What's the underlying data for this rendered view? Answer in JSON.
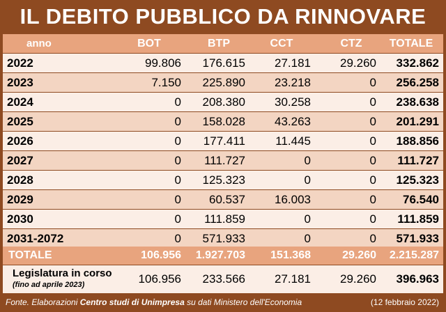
{
  "title": "IL DEBITO PUBBLICO DA RINNOVARE",
  "columns": [
    "anno",
    "BOT",
    "BTP",
    "CCT",
    "CTZ",
    "TOTALE"
  ],
  "chart_data": {
    "type": "table",
    "title": "IL DEBITO PUBBLICO DA RINNOVARE",
    "columns": [
      "anno",
      "BOT",
      "BTP",
      "CCT",
      "CTZ",
      "TOTALE"
    ],
    "rows": [
      [
        "2022",
        "99.806",
        "176.615",
        "27.181",
        "29.260",
        "332.862"
      ],
      [
        "2023",
        "7.150",
        "225.890",
        "23.218",
        "0",
        "256.258"
      ],
      [
        "2024",
        "0",
        "208.380",
        "30.258",
        "0",
        "238.638"
      ],
      [
        "2025",
        "0",
        "158.028",
        "43.263",
        "0",
        "201.291"
      ],
      [
        "2026",
        "0",
        "177.411",
        "11.445",
        "0",
        "188.856"
      ],
      [
        "2027",
        "0",
        "111.727",
        "0",
        "0",
        "111.727"
      ],
      [
        "2028",
        "0",
        "125.323",
        "0",
        "0",
        "125.323"
      ],
      [
        "2029",
        "0",
        "60.537",
        "16.003",
        "0",
        "76.540"
      ],
      [
        "2030",
        "0",
        "111.859",
        "0",
        "0",
        "111.859"
      ],
      [
        "2031-2072",
        "0",
        "571.933",
        "0",
        "0",
        "571.933"
      ]
    ],
    "total_row": [
      "TOTALE",
      "106.956",
      "1.927.703",
      "151.368",
      "29.260",
      "2.215.287"
    ],
    "legislature_row": {
      "label": "Legislatura in corso",
      "sublabel": "(fino ad aprile 2023)",
      "values": [
        "106.956",
        "233.566",
        "27.181",
        "29.260",
        "396.963"
      ]
    }
  },
  "footer": {
    "source_prefix": "Fonte. Elaborazioni ",
    "source_bold": "Centro studi di Unimpresa",
    "source_suffix": " su dati Ministero dell'Economia",
    "date": "(12 febbraio 2022)"
  },
  "colors": {
    "frame": "#8e4a21",
    "header_bg": "#e8a47e",
    "row_light": "#fbeee6",
    "row_dark": "#f3d5c2"
  }
}
